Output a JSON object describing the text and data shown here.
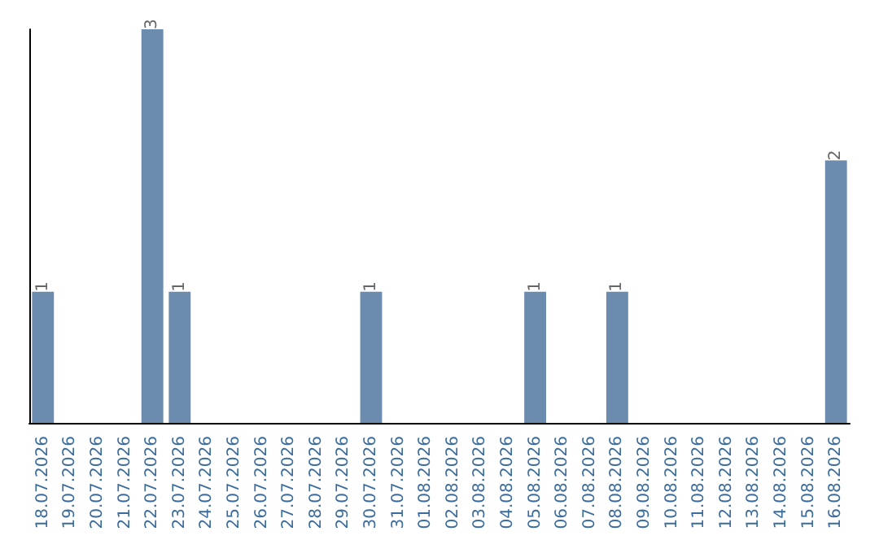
{
  "chart_data": {
    "type": "bar",
    "categories": [
      "18.07.2026",
      "19.07.2026",
      "20.07.2026",
      "21.07.2026",
      "22.07.2026",
      "23.07.2026",
      "24.07.2026",
      "25.07.2026",
      "26.07.2026",
      "27.07.2026",
      "28.07.2026",
      "29.07.2026",
      "30.07.2026",
      "31.07.2026",
      "01.08.2026",
      "02.08.2026",
      "03.08.2026",
      "04.08.2026",
      "05.08.2026",
      "06.08.2026",
      "07.08.2026",
      "08.08.2026",
      "09.08.2026",
      "10.08.2026",
      "11.08.2026",
      "12.08.2026",
      "13.08.2026",
      "14.08.2026",
      "15.08.2026",
      "16.08.2026"
    ],
    "values": [
      1,
      0,
      0,
      0,
      3,
      1,
      0,
      0,
      0,
      0,
      0,
      0,
      1,
      0,
      0,
      0,
      0,
      0,
      1,
      0,
      0,
      1,
      0,
      0,
      0,
      0,
      0,
      0,
      0,
      2
    ],
    "value_labels": [
      "1",
      null,
      null,
      null,
      "3",
      "1",
      null,
      null,
      null,
      null,
      null,
      null,
      "1",
      null,
      null,
      null,
      null,
      null,
      "1",
      null,
      null,
      "1",
      null,
      null,
      null,
      null,
      null,
      null,
      null,
      "2"
    ],
    "color": "#6b8cae",
    "tick_labels": "x"
  }
}
